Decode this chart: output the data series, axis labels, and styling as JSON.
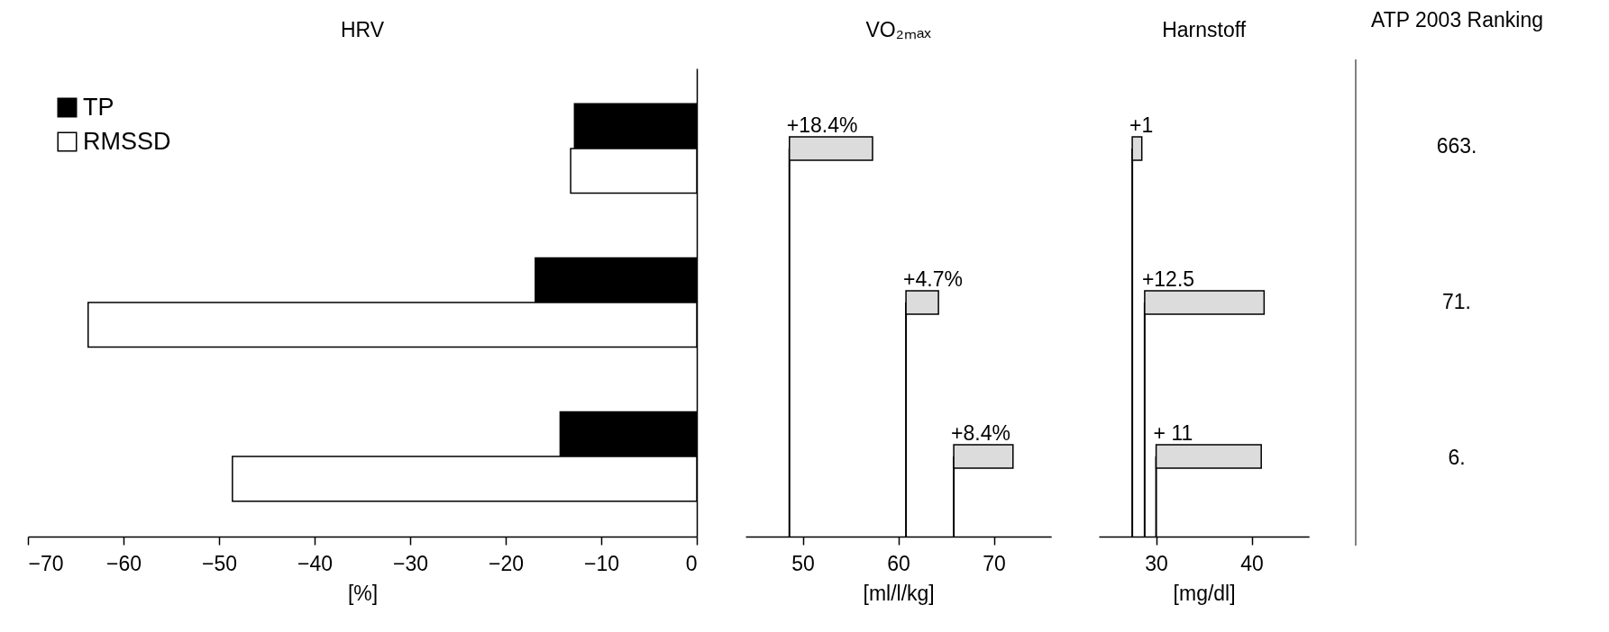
{
  "chart_data": [
    {
      "type": "bar",
      "orientation": "horizontal",
      "title": "HRV",
      "xlabel": "[%]",
      "categories": [
        null,
        null,
        null
      ],
      "series": [
        {
          "name": "TP",
          "color": "#000000",
          "values": [
            -12.8,
            -16.9,
            -14.3
          ]
        },
        {
          "name": "RMSSD",
          "color": "#ffffff",
          "values": [
            -13.2,
            -63.7,
            -48.6
          ]
        }
      ],
      "xlim": [
        -70,
        0
      ],
      "xticks": [
        -70,
        -60,
        -50,
        -40,
        -30,
        -20,
        -10,
        0
      ],
      "legend": "top left"
    },
    {
      "type": "bar",
      "orientation": "horizontal",
      "title": "VO₂ₘₐₓ",
      "xlabel": "[ml/l/kg]",
      "categories": [
        null,
        null,
        null
      ],
      "base": [
        48.6,
        60.8,
        65.8
      ],
      "values": [
        8.7,
        3.4,
        6.2
      ],
      "annotations": [
        "+18.4%",
        "+4.7%",
        "+8.4%"
      ],
      "color": "#dcdcdc",
      "xlim": [
        44,
        76
      ],
      "xticks": [
        50,
        60,
        70
      ],
      "ref_lines": [
        {
          "axis": "x",
          "value": 48.6
        },
        {
          "axis": "x",
          "value": 60.8
        },
        {
          "axis": "x",
          "value": 65.8
        }
      ]
    },
    {
      "type": "bar",
      "orientation": "horizontal",
      "title": "Harnstoff",
      "xlabel": "[mg/dl]",
      "categories": [
        null,
        null,
        null
      ],
      "base": [
        27.5,
        28.8,
        30.0
      ],
      "values": [
        1,
        12.5,
        11
      ],
      "annotations": [
        "+1",
        "+12.5",
        "+ 11"
      ],
      "color": "#dcdcdc",
      "xlim": [
        24,
        46
      ],
      "xticks": [
        30,
        40
      ],
      "ref_lines": [
        {
          "axis": "x",
          "value": 27.5
        },
        {
          "axis": "x",
          "value": 28.8
        },
        {
          "axis": "x",
          "value": 30.0
        }
      ]
    },
    {
      "type": "other",
      "title": "ATP 2003 Ranking",
      "annotations": [
        "663.",
        "71.",
        "6."
      ]
    }
  ]
}
